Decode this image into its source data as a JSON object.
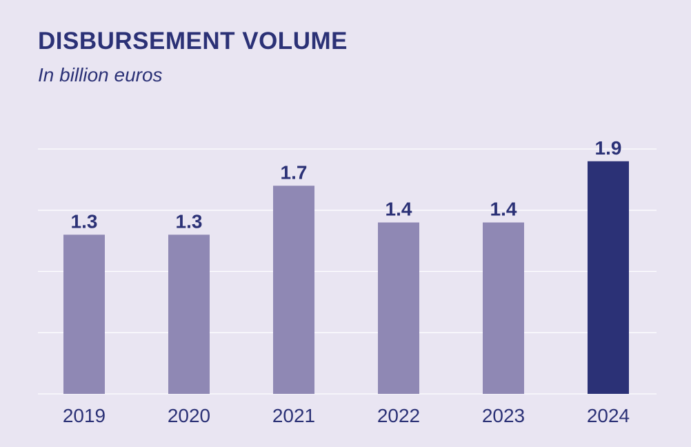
{
  "chart_data": {
    "type": "bar",
    "title": "DISBURSEMENT VOLUME",
    "subtitle": "In billion euros",
    "xlabel": "",
    "ylabel": "",
    "categories": [
      "2019",
      "2020",
      "2021",
      "2022",
      "2023",
      "2024"
    ],
    "values": [
      1.3,
      1.3,
      1.7,
      1.4,
      1.4,
      1.9
    ],
    "data_labels": [
      "1.3",
      "1.3",
      "1.7",
      "1.4",
      "1.4",
      "1.9"
    ],
    "ylim": [
      0,
      2
    ],
    "gridlines": [
      0.5,
      1.0,
      1.5,
      2.0
    ],
    "grid": true,
    "highlight_index": 5,
    "colors": {
      "bar": "#8f88b4",
      "highlight": "#2b3176",
      "text": "#2b3176",
      "grid": "#ffffff",
      "background": "#e9e5f2"
    }
  }
}
